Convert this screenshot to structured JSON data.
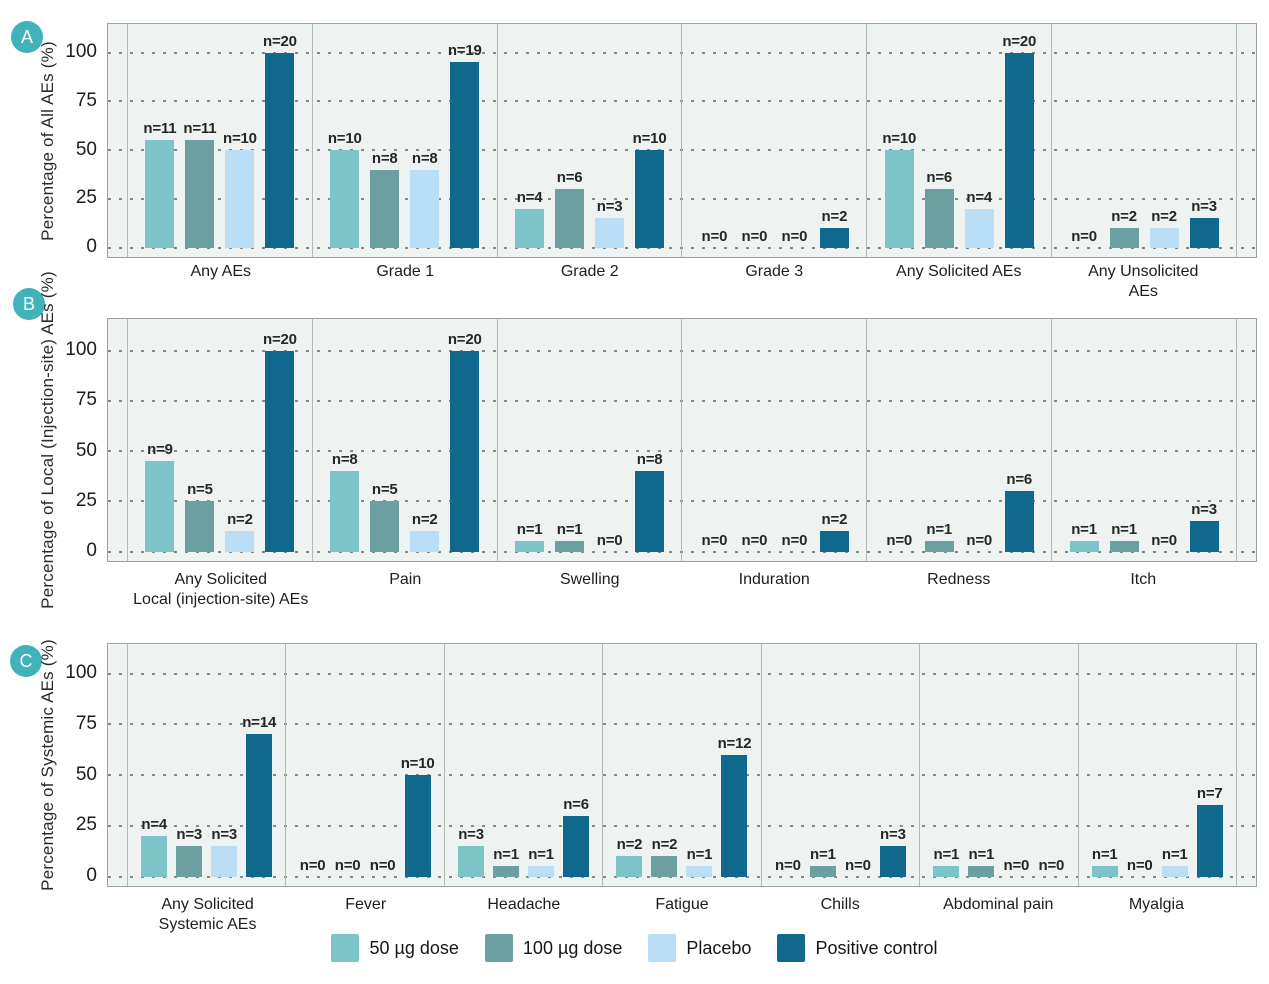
{
  "figure": {
    "panel_badges": [
      "A",
      "B",
      "C"
    ],
    "legend_position": "bottom",
    "grid_style": "dotted horizontal gridlines"
  },
  "colors": {
    "dose50": "#7dc4c9",
    "dose100": "#6b9fa0",
    "placebo": "#b9def6",
    "positive_control": "#10688c",
    "badge": "#41b1ba",
    "plot_background": "#eef3f2",
    "grid_dot": "#808b8a",
    "outer_border": "#98a3a2",
    "facet_line": "#b0b9b8"
  },
  "legend": [
    {
      "label": "50 µg dose",
      "color": "#7dc4c9"
    },
    {
      "label": "100 µg dose",
      "color": "#6b9fa0"
    },
    {
      "label": "Placebo",
      "color": "#b9def6"
    },
    {
      "label": "Positive control",
      "color": "#10688c"
    }
  ],
  "chart_data": [
    {
      "type": "bar",
      "panel": "A",
      "ylabel": "Percentage of All AEs (%)",
      "yticks": [
        0,
        25,
        50,
        75,
        100
      ],
      "ytick_labels": [
        "0",
        "25",
        "50",
        "75",
        "100"
      ],
      "ylim": [
        0,
        112
      ],
      "bar_label_format": "n={n}",
      "categories": [
        "Any AEs",
        "Grade 1",
        "Grade 2",
        "Grade 3",
        "Any Solicited AEs",
        "Any Unsolicited AEs"
      ],
      "series": [
        {
          "name": "50 µg dose",
          "color": "#7dc4c9",
          "n": [
            11,
            10,
            4,
            0,
            10,
            0
          ],
          "values_pct": [
            55,
            50,
            20,
            0,
            50,
            0
          ]
        },
        {
          "name": "100 µg dose",
          "color": "#6b9fa0",
          "n": [
            11,
            8,
            6,
            0,
            6,
            2
          ],
          "values_pct": [
            55,
            40,
            30,
            0,
            30,
            10
          ]
        },
        {
          "name": "Placebo",
          "color": "#b9def6",
          "n": [
            10,
            8,
            3,
            0,
            4,
            2
          ],
          "values_pct": [
            50,
            40,
            15,
            0,
            20,
            10
          ]
        },
        {
          "name": "Positive control",
          "color": "#10688c",
          "n": [
            20,
            19,
            10,
            2,
            20,
            3
          ],
          "values_pct": [
            100,
            95,
            50,
            10,
            100,
            15
          ]
        }
      ]
    },
    {
      "type": "bar",
      "panel": "B",
      "ylabel": "Percentage of Local  (Injection-site) AEs (%)",
      "yticks": [
        0,
        25,
        50,
        75,
        100
      ],
      "ytick_labels": [
        "0",
        "25",
        "50",
        "75",
        "100"
      ],
      "ylim": [
        0,
        112
      ],
      "bar_label_format": "n={n}",
      "categories": [
        "Any Solicited\nLocal (injection-site) AEs",
        "Pain",
        "Swelling",
        "Induration",
        "Redness",
        "Itch"
      ],
      "series": [
        {
          "name": "50 µg dose",
          "color": "#7dc4c9",
          "n": [
            9,
            8,
            1,
            0,
            0,
            1
          ],
          "values_pct": [
            45,
            40,
            5,
            0,
            0,
            5
          ]
        },
        {
          "name": "100 µg dose",
          "color": "#6b9fa0",
          "n": [
            5,
            5,
            1,
            0,
            1,
            1
          ],
          "values_pct": [
            25,
            25,
            5,
            0,
            5,
            5
          ]
        },
        {
          "name": "Placebo",
          "color": "#b9def6",
          "n": [
            2,
            2,
            0,
            0,
            0,
            0
          ],
          "values_pct": [
            10,
            10,
            0,
            0,
            0,
            0
          ]
        },
        {
          "name": "Positive control",
          "color": "#10688c",
          "n": [
            20,
            20,
            8,
            2,
            6,
            3
          ],
          "values_pct": [
            100,
            100,
            40,
            10,
            30,
            15
          ]
        }
      ]
    },
    {
      "type": "bar",
      "panel": "C",
      "ylabel": "Percentage of Systemic AEs (%)",
      "yticks": [
        0,
        25,
        50,
        75,
        100
      ],
      "ytick_labels": [
        "0",
        "25",
        "50",
        "75",
        "100"
      ],
      "ylim": [
        0,
        112
      ],
      "bar_label_format": "n={n}",
      "categories": [
        "Any Solicited\nSystemic AEs",
        "Fever",
        "Headache",
        "Fatigue",
        "Chills",
        "Abdominal pain",
        "Myalgia"
      ],
      "series": [
        {
          "name": "50 µg dose",
          "color": "#7dc4c9",
          "n": [
            4,
            0,
            3,
            2,
            0,
            1,
            1
          ],
          "values_pct": [
            20,
            0,
            15,
            10,
            0,
            5,
            5
          ]
        },
        {
          "name": "100 µg dose",
          "color": "#6b9fa0",
          "n": [
            3,
            0,
            1,
            2,
            1,
            1,
            0
          ],
          "values_pct": [
            15,
            0,
            5,
            10,
            5,
            5,
            0
          ]
        },
        {
          "name": "Placebo",
          "color": "#b9def6",
          "n": [
            3,
            0,
            1,
            1,
            0,
            0,
            1
          ],
          "values_pct": [
            15,
            0,
            5,
            5,
            0,
            0,
            5
          ]
        },
        {
          "name": "Positive control",
          "color": "#10688c",
          "n": [
            14,
            10,
            6,
            12,
            3,
            0,
            7
          ],
          "values_pct": [
            70,
            50,
            30,
            60,
            15,
            0,
            35
          ]
        }
      ]
    }
  ]
}
